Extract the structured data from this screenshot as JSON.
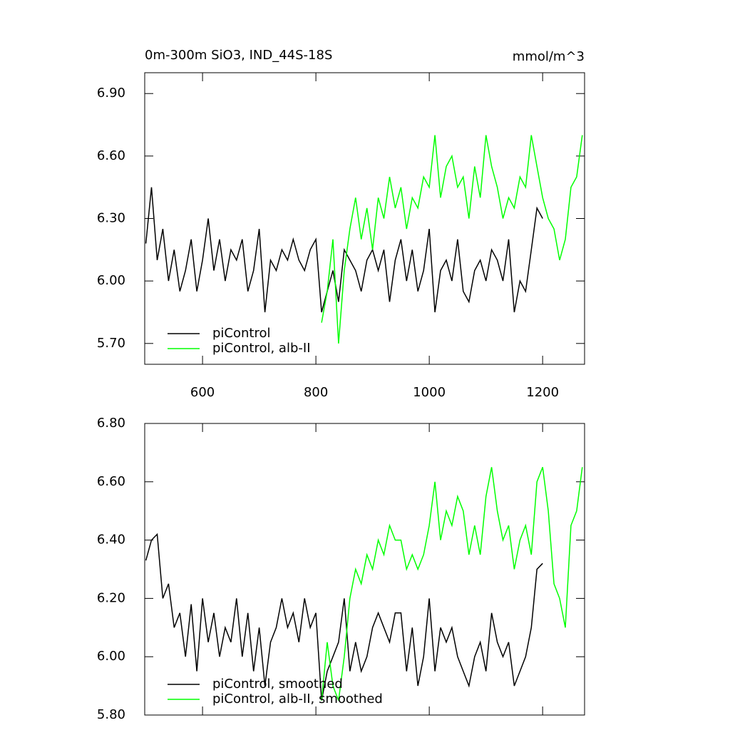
{
  "chart_data": [
    {
      "type": "line",
      "title": "0m-300m SiO3, IND_44S-18S",
      "units": "mmol/m^3",
      "x": [
        500,
        510,
        520,
        530,
        540,
        550,
        560,
        570,
        580,
        590,
        600,
        610,
        620,
        630,
        640,
        650,
        660,
        670,
        680,
        690,
        700,
        710,
        720,
        730,
        740,
        750,
        760,
        770,
        780,
        790,
        800,
        810,
        820,
        830,
        840,
        850,
        860,
        870,
        880,
        890,
        900,
        910,
        920,
        930,
        940,
        950,
        960,
        970,
        980,
        990,
        1000,
        1010,
        1020,
        1030,
        1040,
        1050,
        1060,
        1070,
        1080,
        1090,
        1100,
        1110,
        1120,
        1130,
        1140,
        1150,
        1160,
        1170,
        1180,
        1190,
        1200,
        1210,
        1220,
        1230,
        1240,
        1250,
        1260,
        1270
      ],
      "series": [
        {
          "name": "piControl",
          "color": "#000000",
          "values": [
            6.18,
            6.45,
            6.1,
            6.25,
            6.0,
            6.15,
            5.95,
            6.05,
            6.2,
            5.95,
            6.1,
            6.3,
            6.05,
            6.2,
            6.0,
            6.15,
            6.1,
            6.2,
            5.95,
            6.05,
            6.25,
            5.85,
            6.1,
            6.05,
            6.15,
            6.1,
            6.2,
            6.1,
            6.05,
            6.15,
            6.2,
            5.85,
            5.95,
            6.05,
            5.9,
            6.15,
            6.1,
            6.05,
            5.95,
            6.1,
            6.15,
            6.05,
            6.15,
            5.9,
            6.1,
            6.2,
            6.0,
            6.15,
            5.95,
            6.05,
            6.25,
            5.85,
            6.05,
            6.1,
            6.0,
            6.2,
            5.95,
            5.9,
            6.05,
            6.1,
            6.0,
            6.15,
            6.1,
            6.0,
            6.2,
            5.85,
            6.0,
            5.95,
            6.15,
            6.35,
            6.3,
            null,
            null,
            null,
            null,
            null,
            null,
            null
          ]
        },
        {
          "name": "piControl, alb-II",
          "color": "#00ff00",
          "values": [
            null,
            null,
            null,
            null,
            null,
            null,
            null,
            null,
            null,
            null,
            null,
            null,
            null,
            null,
            null,
            null,
            null,
            null,
            null,
            null,
            null,
            null,
            null,
            null,
            null,
            null,
            null,
            null,
            null,
            null,
            null,
            5.8,
            5.95,
            6.2,
            5.7,
            6.05,
            6.25,
            6.4,
            6.2,
            6.35,
            6.15,
            6.4,
            6.3,
            6.5,
            6.35,
            6.45,
            6.25,
            6.4,
            6.35,
            6.5,
            6.45,
            6.7,
            6.4,
            6.55,
            6.6,
            6.45,
            6.5,
            6.3,
            6.55,
            6.4,
            6.7,
            6.55,
            6.45,
            6.3,
            6.4,
            6.35,
            6.5,
            6.45,
            6.7,
            6.55,
            6.4,
            6.3,
            6.25,
            6.1,
            6.2,
            6.45,
            6.5,
            6.7
          ]
        }
      ],
      "xlim": [
        498,
        1274
      ],
      "xticks": [
        600,
        800,
        1000,
        1200
      ],
      "xtick_labels": true,
      "ylim": [
        5.6,
        7.0
      ],
      "yticks": [
        {
          "value": 5.7,
          "label": "5.70"
        },
        {
          "value": 6.0,
          "label": "6.00"
        },
        {
          "value": 6.3,
          "label": "6.30"
        },
        {
          "value": 6.6,
          "label": "6.60"
        },
        {
          "value": 6.9,
          "label": "6.90"
        }
      ],
      "legend": "lower left"
    },
    {
      "type": "line",
      "x": [
        500,
        510,
        520,
        530,
        540,
        550,
        560,
        570,
        580,
        590,
        600,
        610,
        620,
        630,
        640,
        650,
        660,
        670,
        680,
        690,
        700,
        710,
        720,
        730,
        740,
        750,
        760,
        770,
        780,
        790,
        800,
        810,
        820,
        830,
        840,
        850,
        860,
        870,
        880,
        890,
        900,
        910,
        920,
        930,
        940,
        950,
        960,
        970,
        980,
        990,
        1000,
        1010,
        1020,
        1030,
        1040,
        1050,
        1060,
        1070,
        1080,
        1090,
        1100,
        1110,
        1120,
        1130,
        1140,
        1150,
        1160,
        1170,
        1180,
        1190,
        1200,
        1210,
        1220,
        1230,
        1240,
        1250,
        1260,
        1270
      ],
      "series": [
        {
          "name": "piControl, smoothed",
          "color": "#000000",
          "values": [
            6.33,
            6.4,
            6.42,
            6.2,
            6.25,
            6.1,
            6.15,
            6.0,
            6.18,
            5.95,
            6.2,
            6.05,
            6.15,
            6.0,
            6.1,
            6.05,
            6.2,
            6.0,
            6.15,
            5.95,
            6.1,
            5.9,
            6.05,
            6.1,
            6.2,
            6.1,
            6.15,
            6.05,
            6.2,
            6.1,
            6.15,
            5.85,
            5.95,
            6.0,
            6.05,
            6.2,
            5.95,
            6.05,
            5.95,
            6.0,
            6.1,
            6.15,
            6.1,
            6.05,
            6.15,
            6.15,
            5.95,
            6.1,
            5.9,
            6.0,
            6.2,
            5.95,
            6.1,
            6.05,
            6.1,
            6.0,
            5.95,
            5.9,
            6.0,
            6.05,
            5.95,
            6.15,
            6.05,
            6.0,
            6.05,
            5.9,
            5.95,
            6.0,
            6.1,
            6.3,
            6.32,
            null,
            null,
            null,
            null,
            null,
            null,
            null
          ]
        },
        {
          "name": "piControl, alb-II, smoothed",
          "color": "#00ff00",
          "values": [
            null,
            null,
            null,
            null,
            null,
            null,
            null,
            null,
            null,
            null,
            null,
            null,
            null,
            null,
            null,
            null,
            null,
            null,
            null,
            null,
            null,
            null,
            null,
            null,
            null,
            null,
            null,
            null,
            null,
            null,
            null,
            5.85,
            6.05,
            5.9,
            5.85,
            6.0,
            6.2,
            6.3,
            6.25,
            6.35,
            6.3,
            6.4,
            6.35,
            6.45,
            6.4,
            6.4,
            6.3,
            6.35,
            6.3,
            6.35,
            6.45,
            6.6,
            6.4,
            6.5,
            6.45,
            6.55,
            6.5,
            6.35,
            6.45,
            6.35,
            6.55,
            6.65,
            6.5,
            6.4,
            6.45,
            6.3,
            6.4,
            6.45,
            6.35,
            6.6,
            6.65,
            6.5,
            6.25,
            6.2,
            6.1,
            6.45,
            6.5,
            6.65
          ]
        }
      ],
      "xlim": [
        498,
        1274
      ],
      "xticks": [
        600,
        800,
        1000,
        1200
      ],
      "xtick_labels": false,
      "ylim": [
        5.8,
        6.8
      ],
      "yticks": [
        {
          "value": 5.8,
          "label": "5.80"
        },
        {
          "value": 6.0,
          "label": "6.00"
        },
        {
          "value": 6.2,
          "label": "6.20"
        },
        {
          "value": 6.4,
          "label": "6.40"
        },
        {
          "value": 6.6,
          "label": "6.60"
        },
        {
          "value": 6.8,
          "label": "6.80"
        }
      ],
      "legend": "lower left"
    }
  ]
}
